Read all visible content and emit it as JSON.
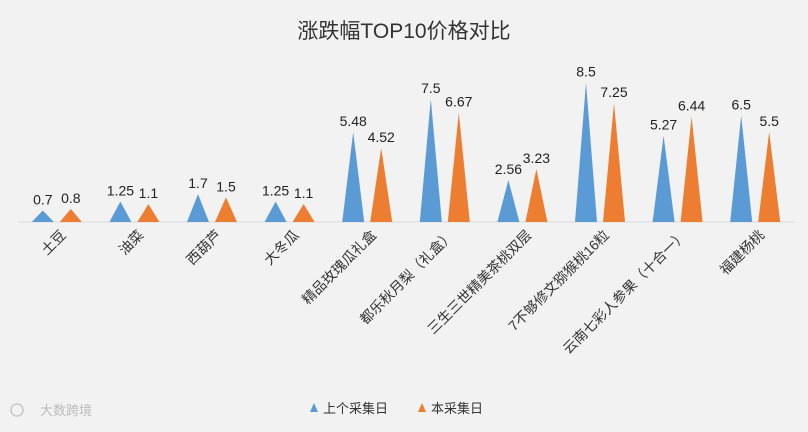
{
  "chart_data": {
    "type": "bar",
    "title": "涨跌幅TOP10价格对比",
    "categories": [
      "土豆",
      "油菜",
      "西葫芦",
      "大冬瓜",
      "精品玫瑰瓜礼盒",
      "都乐秋月梨（礼盒）",
      "三生三世精美茶桃双层",
      "7不够修文猕猴桃16粒",
      "云南七彩人参果（十合一）",
      "福建杨桃"
    ],
    "series": [
      {
        "name": "上个采集日",
        "values": [
          0.7,
          1.25,
          1.7,
          1.25,
          5.48,
          7.5,
          2.56,
          8.5,
          5.27,
          6.5
        ],
        "color": "#5b9bd5"
      },
      {
        "name": "本采集日",
        "values": [
          0.8,
          1.1,
          1.5,
          1.1,
          4.52,
          6.67,
          3.23,
          7.25,
          6.44,
          5.5
        ],
        "color": "#ed7d31"
      }
    ],
    "ylim": [
      0,
      9
    ],
    "grid": false,
    "legend": "bottom",
    "mark_shape": "triangle"
  },
  "watermark": "大数跨境"
}
